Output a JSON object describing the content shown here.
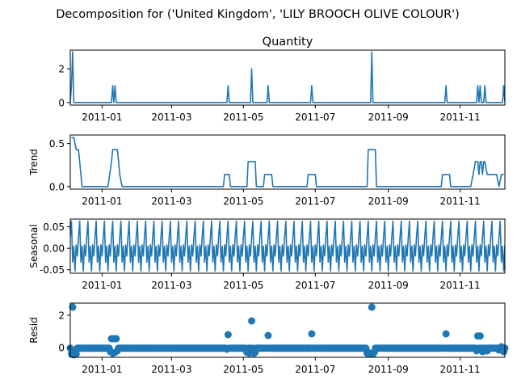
{
  "figure_title": "Decomposition for ('United Kingdom', 'LILY BROOCH OLIVE COLOUR')",
  "colors": {
    "line": "#1f77b4",
    "axes": "#000000"
  },
  "chart_data": [
    {
      "type": "line",
      "title": "Quantity",
      "ylabel": "",
      "xlim": [
        "2010-12-05",
        "2011-12-09"
      ],
      "ylim": [
        -0.15,
        3.1
      ],
      "yticks": [
        0,
        2
      ],
      "xticks": [
        "2011-01",
        "2011-03",
        "2011-05",
        "2011-07",
        "2011-09",
        "2011-11"
      ],
      "series": [
        {
          "default": 0,
          "x": [
            "2010-12-06",
            "2010-12-07",
            "2011-01-10",
            "2011-01-12",
            "2011-04-18",
            "2011-05-08",
            "2011-05-22",
            "2011-06-28",
            "2011-08-18",
            "2011-10-20",
            "2011-11-16",
            "2011-11-18",
            "2011-11-22",
            "2011-12-08"
          ],
          "values": [
            1,
            3,
            1,
            1,
            1,
            2,
            1,
            1,
            3,
            1,
            1,
            1,
            1,
            1
          ]
        }
      ]
    },
    {
      "type": "line",
      "title": "",
      "ylabel": "Trend",
      "xlim": [
        "2010-12-05",
        "2011-12-09"
      ],
      "ylim": [
        -0.03,
        0.6
      ],
      "yticks": [
        0.0,
        0.5
      ],
      "xticks": [
        "2011-01",
        "2011-03",
        "2011-05",
        "2011-07",
        "2011-09",
        "2011-11"
      ],
      "series": [
        {
          "x": [
            "2010-12-06",
            "2010-12-08",
            "2010-12-10",
            "2010-12-11",
            "2010-12-12",
            "2010-12-15",
            "2011-01-06",
            "2011-01-09",
            "2011-01-10",
            "2011-01-14",
            "2011-01-15",
            "2011-01-16",
            "2011-01-18",
            "2011-04-14",
            "2011-04-15",
            "2011-04-19",
            "2011-04-20",
            "2011-05-04",
            "2011-05-05",
            "2011-05-11",
            "2011-05-12",
            "2011-05-18",
            "2011-05-19",
            "2011-05-25",
            "2011-05-26",
            "2011-06-24",
            "2011-06-25",
            "2011-07-01",
            "2011-07-02",
            "2011-08-14",
            "2011-08-15",
            "2011-08-21",
            "2011-08-22",
            "2011-10-16",
            "2011-10-17",
            "2011-10-23",
            "2011-10-24",
            "2011-11-10",
            "2011-11-12",
            "2011-11-14",
            "2011-11-16",
            "2011-11-17",
            "2011-11-18",
            "2011-11-19",
            "2011-11-20",
            "2011-11-21",
            "2011-11-22",
            "2011-11-24",
            "2011-11-25",
            "2011-12-02",
            "2011-12-04",
            "2011-12-06",
            "2011-12-08"
          ],
          "values": [
            0.57,
            0.57,
            0.43,
            0.43,
            0.43,
            0.0,
            0.0,
            0.29,
            0.43,
            0.43,
            0.29,
            0.14,
            0.0,
            0.0,
            0.14,
            0.14,
            0.0,
            0.0,
            0.29,
            0.29,
            0.0,
            0.0,
            0.14,
            0.14,
            0.0,
            0.0,
            0.14,
            0.14,
            0.0,
            0.0,
            0.43,
            0.43,
            0.0,
            0.0,
            0.14,
            0.14,
            0.0,
            0.0,
            0.14,
            0.29,
            0.29,
            0.14,
            0.29,
            0.29,
            0.14,
            0.29,
            0.29,
            0.14,
            0.14,
            0.14,
            0.0,
            0.14,
            0.14
          ]
        }
      ]
    },
    {
      "type": "line",
      "title": "",
      "ylabel": "Seasonal",
      "xlim": [
        "2010-12-05",
        "2011-12-09"
      ],
      "ylim": [
        -0.058,
        0.068
      ],
      "yticks": [
        -0.05,
        0.0,
        0.05
      ],
      "xticks": [
        "2011-01",
        "2011-03",
        "2011-05",
        "2011-07",
        "2011-09",
        "2011-11"
      ],
      "series": [
        {
          "start": "2010-12-06",
          "period_days": 7,
          "pattern": [
            0.063,
            -0.032,
            0.005,
            -0.053,
            0.008,
            -0.018,
            0.027
          ]
        }
      ]
    },
    {
      "type": "scatter",
      "title": "",
      "ylabel": "Resid",
      "xlim": [
        "2010-12-05",
        "2011-12-09"
      ],
      "ylim": [
        -0.6,
        2.75
      ],
      "yticks": [
        0,
        2
      ],
      "xticks": [
        "2011-01",
        "2011-03",
        "2011-05",
        "2011-07",
        "2011-09",
        "2011-11"
      ],
      "series": [
        {
          "default": -0.04,
          "x": [
            "2010-12-06",
            "2010-12-07",
            "2010-12-08",
            "2010-12-09",
            "2010-12-10",
            "2011-01-08",
            "2011-01-09",
            "2011-01-10",
            "2011-01-11",
            "2011-01-12",
            "2011-01-13",
            "2011-01-14",
            "2011-04-17",
            "2011-04-18",
            "2011-05-03",
            "2011-05-04",
            "2011-05-06",
            "2011-05-08",
            "2011-05-10",
            "2011-05-11",
            "2011-05-22",
            "2011-06-28",
            "2011-08-14",
            "2011-08-15",
            "2011-08-16",
            "2011-08-17",
            "2011-08-18",
            "2011-08-19",
            "2011-08-20",
            "2011-10-20",
            "2011-11-15",
            "2011-11-16",
            "2011-11-18",
            "2011-11-20",
            "2011-11-22",
            "2011-11-24",
            "2011-12-04",
            "2011-12-06",
            "2011-12-08"
          ],
          "values": [
            -0.4,
            2.5,
            -0.45,
            -0.3,
            -0.4,
            -0.25,
            0.55,
            -0.35,
            0.55,
            -0.3,
            0.55,
            -0.2,
            -0.1,
            0.8,
            -0.15,
            -0.3,
            -0.35,
            1.65,
            -0.35,
            -0.3,
            0.75,
            0.85,
            -0.35,
            -0.3,
            -0.4,
            -0.35,
            2.5,
            -0.4,
            -0.3,
            0.85,
            -0.2,
            0.72,
            0.72,
            -0.25,
            -0.2,
            -0.2,
            -0.15,
            0.05,
            -0.25
          ]
        }
      ]
    }
  ]
}
